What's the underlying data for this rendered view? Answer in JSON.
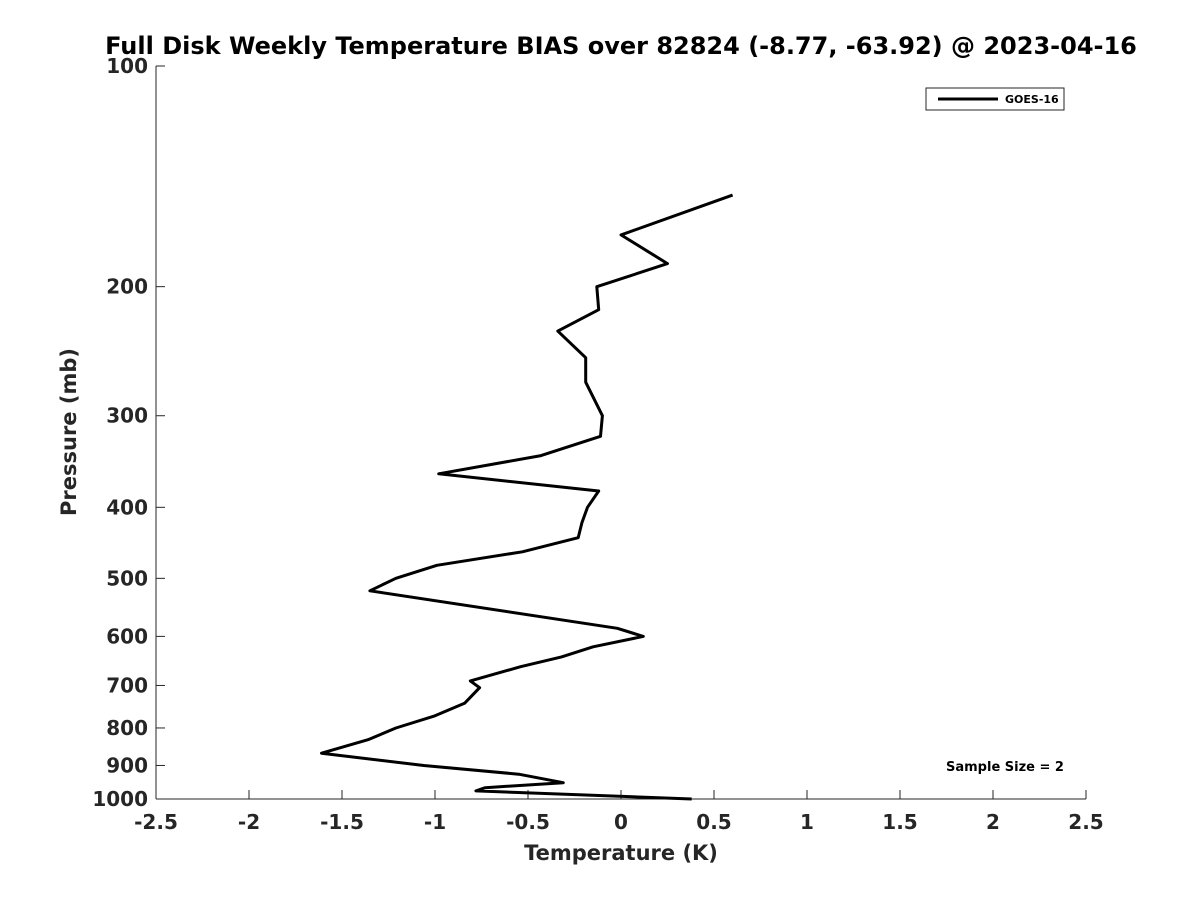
{
  "chart_data": {
    "type": "line",
    "title": "Full Disk Weekly Temperature BIAS over 82824 (-8.77, -63.92) @ 2023-04-16",
    "xlabel": "Temperature (K)",
    "ylabel": "Pressure (mb)",
    "xlim": [
      -2.5,
      2.5
    ],
    "ylim": [
      1000,
      100
    ],
    "yscale": "log",
    "y_reversed": true,
    "xticks": [
      -2.5,
      -2,
      -1.5,
      -1,
      -0.5,
      0,
      0.5,
      1,
      1.5,
      2,
      2.5
    ],
    "xtick_labels": [
      "-2.5",
      "-2",
      "-1.5",
      "-1",
      "-0.5",
      "0",
      "0.5",
      "1",
      "1.5",
      "2",
      "2.5"
    ],
    "yticks": [
      100,
      200,
      300,
      400,
      500,
      600,
      700,
      800,
      900,
      1000
    ],
    "ytick_labels": [
      "100",
      "200",
      "300",
      "400",
      "500",
      "600",
      "700",
      "800",
      "900",
      "1000"
    ],
    "grid": false,
    "legend_position": "top-right",
    "annotation": "Sample Size = 2",
    "series": [
      {
        "name": "GOES-16",
        "color": "#000000",
        "points": [
          {
            "x": 0.6,
            "y": 150
          },
          {
            "x": 0.0,
            "y": 170
          },
          {
            "x": 0.25,
            "y": 186
          },
          {
            "x": -0.13,
            "y": 200
          },
          {
            "x": -0.12,
            "y": 215
          },
          {
            "x": -0.34,
            "y": 230
          },
          {
            "x": -0.19,
            "y": 250
          },
          {
            "x": -0.19,
            "y": 270
          },
          {
            "x": -0.1,
            "y": 300
          },
          {
            "x": -0.11,
            "y": 320
          },
          {
            "x": -0.43,
            "y": 340
          },
          {
            "x": -0.98,
            "y": 360
          },
          {
            "x": -0.12,
            "y": 380
          },
          {
            "x": -0.18,
            "y": 400
          },
          {
            "x": -0.21,
            "y": 420
          },
          {
            "x": -0.23,
            "y": 440
          },
          {
            "x": -0.53,
            "y": 460
          },
          {
            "x": -0.99,
            "y": 480
          },
          {
            "x": -1.21,
            "y": 500
          },
          {
            "x": -1.35,
            "y": 520
          },
          {
            "x": -0.02,
            "y": 585
          },
          {
            "x": 0.12,
            "y": 600
          },
          {
            "x": -0.15,
            "y": 620
          },
          {
            "x": -0.32,
            "y": 640
          },
          {
            "x": -0.54,
            "y": 660
          },
          {
            "x": -0.81,
            "y": 690
          },
          {
            "x": -0.76,
            "y": 705
          },
          {
            "x": -0.84,
            "y": 740
          },
          {
            "x": -1.0,
            "y": 770
          },
          {
            "x": -1.21,
            "y": 800
          },
          {
            "x": -1.36,
            "y": 830
          },
          {
            "x": -1.61,
            "y": 866
          },
          {
            "x": -1.06,
            "y": 900
          },
          {
            "x": -0.55,
            "y": 925
          },
          {
            "x": -0.31,
            "y": 950
          },
          {
            "x": -0.73,
            "y": 965
          },
          {
            "x": -0.78,
            "y": 975
          },
          {
            "x": 0.38,
            "y": 1000
          }
        ]
      }
    ]
  }
}
